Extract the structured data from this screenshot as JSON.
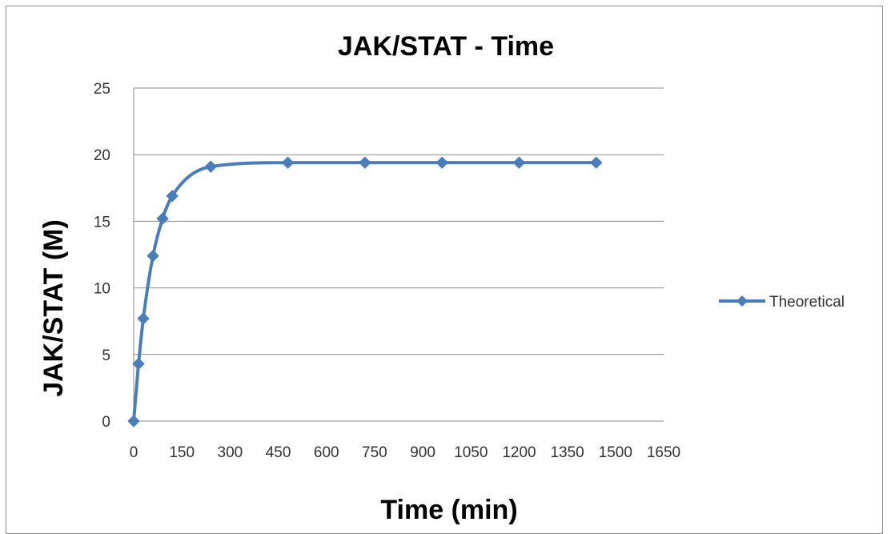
{
  "chart_data": {
    "type": "line",
    "title": "JAK/STAT - Time",
    "xlabel": "Time (min)",
    "ylabel": "JAK/STAT (M)",
    "xlim": [
      0,
      1650
    ],
    "ylim": [
      0,
      25
    ],
    "x_ticks": [
      "0",
      "150",
      "300",
      "450",
      "600",
      "750",
      "900",
      "1050",
      "1200",
      "1350",
      "1500",
      "1650"
    ],
    "y_ticks": [
      "0",
      "5",
      "10",
      "15",
      "20",
      "25"
    ],
    "grid": "horizontal",
    "legend_position": "right",
    "series": [
      {
        "name": "Theoretical",
        "color": "#4a7ebb",
        "marker": "diamond",
        "smooth": true,
        "x": [
          0,
          15,
          30,
          60,
          90,
          120,
          240,
          480,
          720,
          960,
          1200,
          1440
        ],
        "y": [
          0,
          4.3,
          7.7,
          12.4,
          15.2,
          16.9,
          19.1,
          19.4,
          19.4,
          19.4,
          19.4,
          19.4
        ]
      }
    ]
  }
}
